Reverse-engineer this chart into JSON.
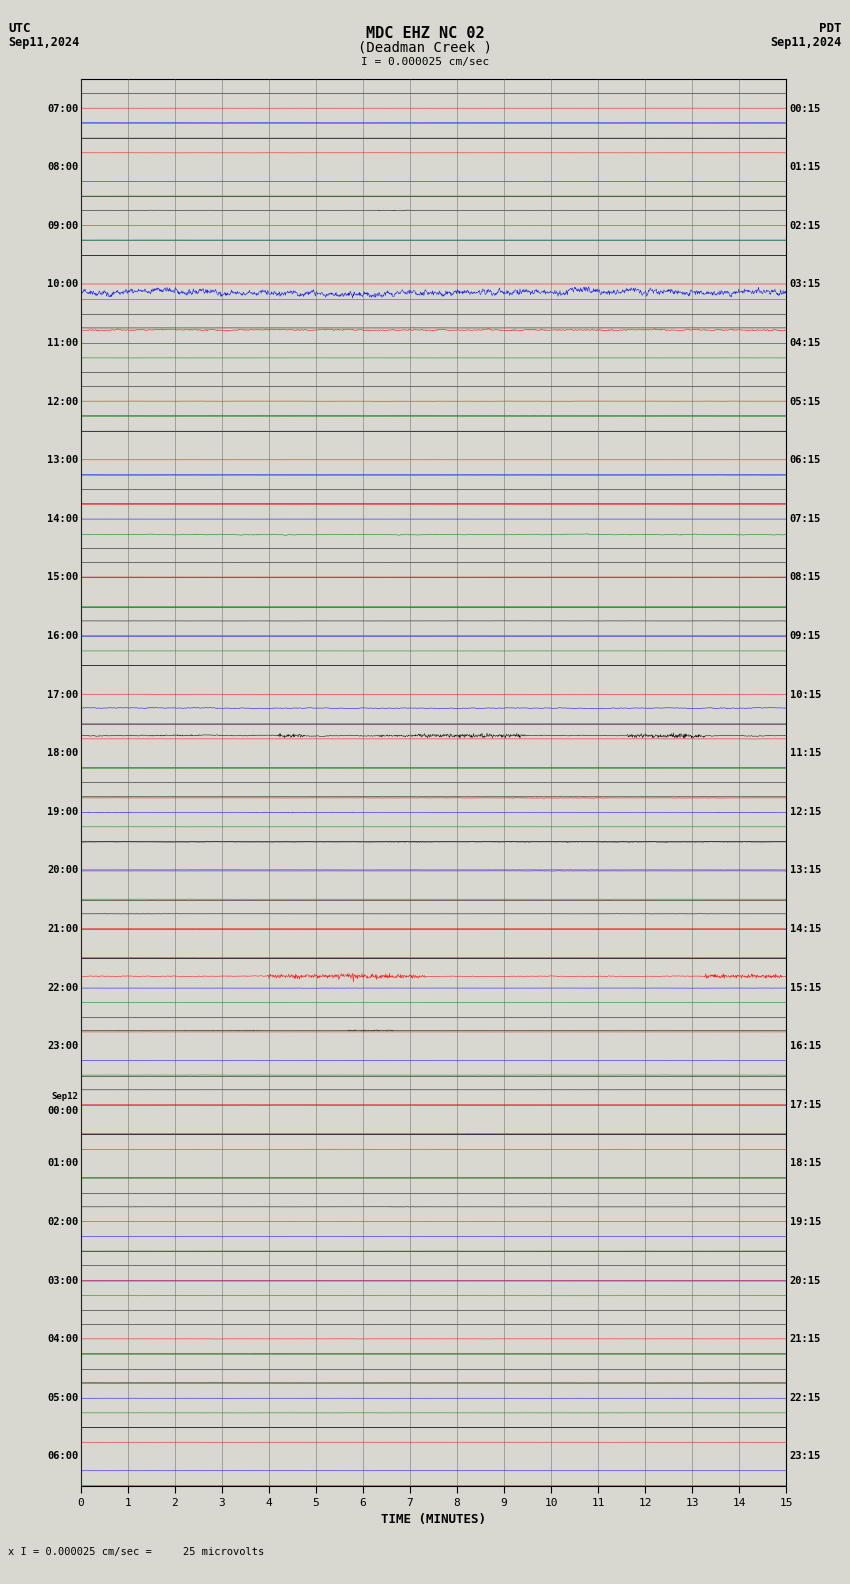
{
  "title_line1": "MDC EHZ NC 02",
  "title_line2": "(Deadman Creek )",
  "scale_label": "I = 0.000025 cm/sec",
  "utc_label": "UTC",
  "utc_date": "Sep11,2024",
  "pdt_label": "PDT",
  "pdt_date": "Sep11,2024",
  "xlabel": "TIME (MINUTES)",
  "bottom_note": "x I = 0.000025 cm/sec =     25 microvolts",
  "left_times": [
    "07:00",
    "08:00",
    "09:00",
    "10:00",
    "11:00",
    "12:00",
    "13:00",
    "14:00",
    "15:00",
    "16:00",
    "17:00",
    "18:00",
    "19:00",
    "20:00",
    "21:00",
    "22:00",
    "23:00",
    "Sep12\n00:00",
    "01:00",
    "02:00",
    "03:00",
    "04:00",
    "05:00",
    "06:00"
  ],
  "right_times": [
    "00:15",
    "01:15",
    "02:15",
    "03:15",
    "04:15",
    "05:15",
    "06:15",
    "07:15",
    "08:15",
    "09:15",
    "10:15",
    "11:15",
    "12:15",
    "13:15",
    "14:15",
    "15:15",
    "16:15",
    "17:15",
    "18:15",
    "19:15",
    "20:15",
    "21:15",
    "22:15",
    "23:15"
  ],
  "n_rows": 24,
  "n_traces_per_row": 4,
  "colors": [
    "black",
    "red",
    "blue",
    "green"
  ],
  "fig_width": 8.5,
  "fig_height": 15.84,
  "bg_color": "#d8d8d0",
  "seed": 42
}
